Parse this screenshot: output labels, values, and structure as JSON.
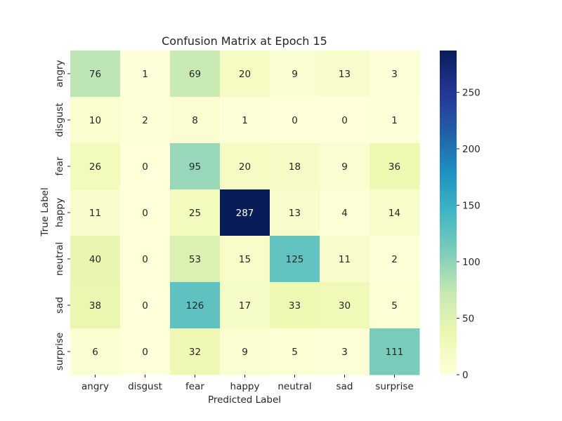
{
  "chart_data": {
    "type": "heatmap",
    "title": "Confusion Matrix at Epoch 15",
    "xlabel": "Predicted Label",
    "ylabel": "True Label",
    "x_categories": [
      "angry",
      "disgust",
      "fear",
      "happy",
      "neutral",
      "sad",
      "surprise"
    ],
    "y_categories": [
      "angry",
      "disgust",
      "fear",
      "happy",
      "neutral",
      "sad",
      "surprise"
    ],
    "values": [
      [
        76,
        1,
        69,
        20,
        9,
        13,
        3
      ],
      [
        10,
        2,
        8,
        1,
        0,
        0,
        1
      ],
      [
        26,
        0,
        95,
        20,
        18,
        9,
        36
      ],
      [
        11,
        0,
        25,
        287,
        13,
        4,
        14
      ],
      [
        40,
        0,
        53,
        15,
        125,
        11,
        2
      ],
      [
        38,
        0,
        126,
        17,
        33,
        30,
        5
      ],
      [
        6,
        0,
        32,
        9,
        5,
        3,
        111
      ]
    ],
    "colormap": "YlGnBu",
    "colorbar": {
      "min": 0,
      "max": 287,
      "ticks": [
        0,
        50,
        100,
        150,
        200,
        250
      ]
    },
    "grid": false
  }
}
